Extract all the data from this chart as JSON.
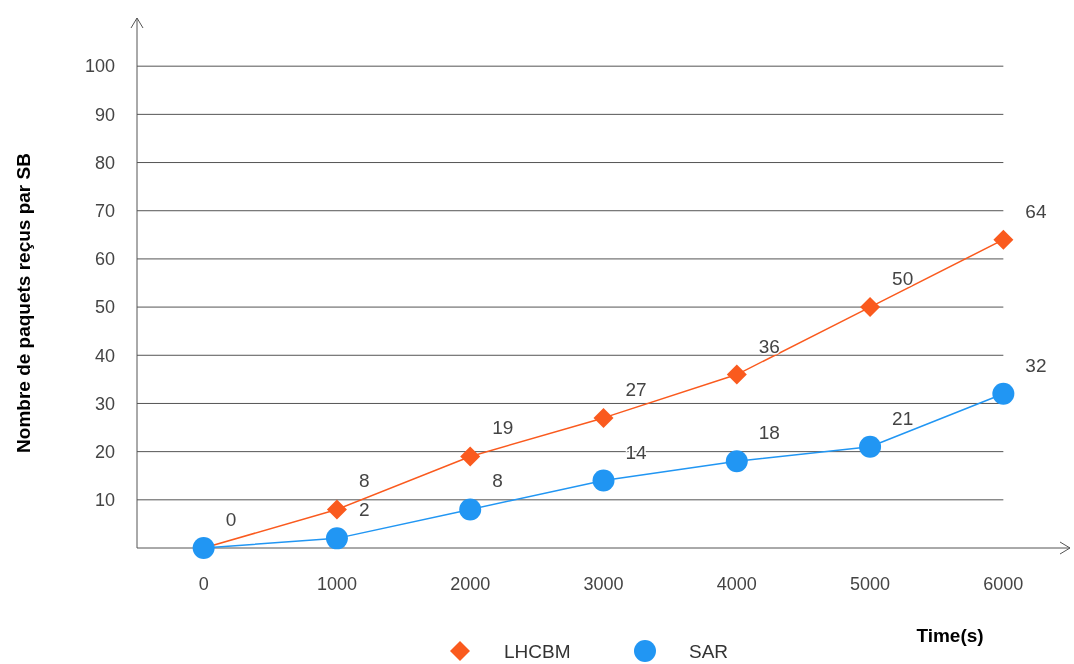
{
  "chart_data": {
    "type": "line",
    "xlabel": "Time(s)",
    "ylabel": "Nombre de paquets reçus par SB",
    "x": [
      0,
      1000,
      2000,
      3000,
      4000,
      5000,
      6000
    ],
    "series": [
      {
        "name": "LHCBM",
        "color": "#fa5a1e",
        "marker": "diamond",
        "values": [
          0,
          8,
          19,
          27,
          36,
          50,
          64
        ],
        "value_labels": [
          "0",
          "8",
          "19",
          "27",
          "36",
          "50",
          "64"
        ]
      },
      {
        "name": "SAR",
        "color": "#2196f3",
        "marker": "circle",
        "values": [
          0,
          2,
          8,
          14,
          18,
          21,
          32
        ],
        "value_labels": [
          null,
          "2",
          "8",
          "14",
          "18",
          "21",
          "32"
        ]
      }
    ],
    "xlim": [
      -500,
      6500
    ],
    "ylim": [
      0,
      110
    ],
    "xticks": [
      0,
      1000,
      2000,
      3000,
      4000,
      5000,
      6000
    ],
    "yticks": [
      10,
      20,
      30,
      40,
      50,
      60,
      70,
      80,
      90,
      100
    ],
    "grid": "y",
    "legend": "bottom"
  }
}
